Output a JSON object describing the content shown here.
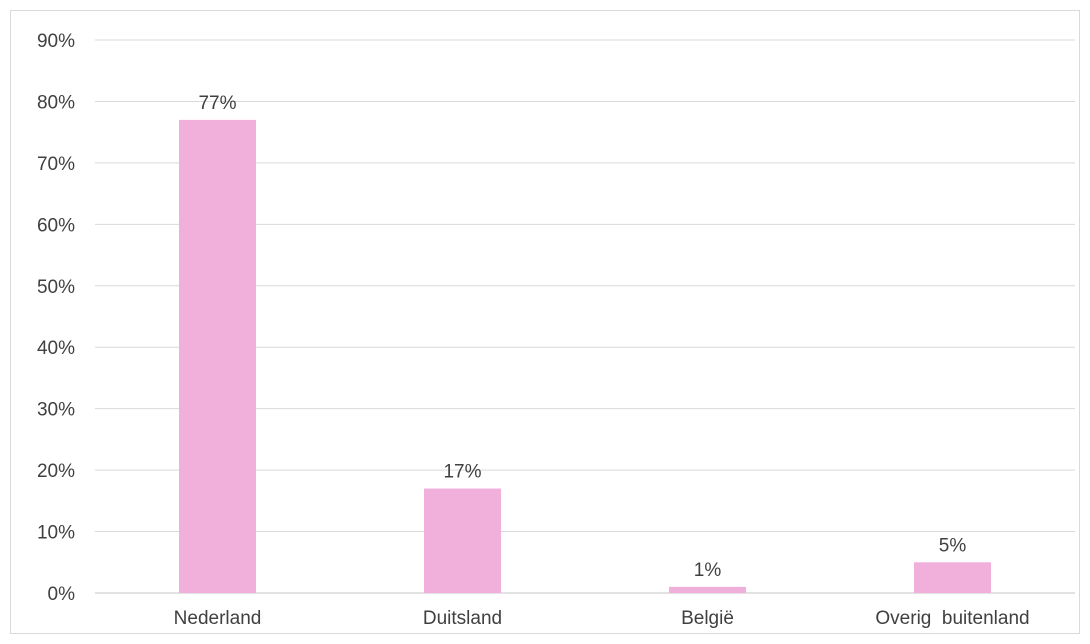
{
  "chart_data": {
    "type": "bar",
    "categories": [
      "Nederland",
      "Duitsland",
      "België",
      "Overig  buitenland"
    ],
    "values": [
      77,
      17,
      1,
      5
    ],
    "data_labels": [
      "77%",
      "17%",
      "1%",
      "5%"
    ],
    "ylim": [
      0,
      90
    ],
    "yticks": [
      0,
      10,
      20,
      30,
      40,
      50,
      60,
      70,
      80,
      90
    ],
    "ytick_labels": [
      "0%",
      "10%",
      "20%",
      "30%",
      "40%",
      "50%",
      "60%",
      "70%",
      "80%",
      "90%"
    ],
    "title": "",
    "xlabel": "",
    "ylabel": "",
    "grid": true,
    "colors": {
      "bar": "#f1b0dc",
      "grid": "#d9d9d9",
      "text": "#404040",
      "border": "#d9d9d9"
    }
  }
}
